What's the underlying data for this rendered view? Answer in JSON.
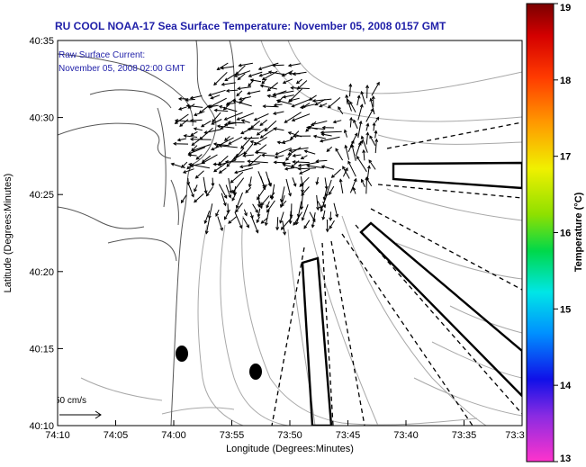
{
  "title": "RU COOL  NOAA-17  Sea Surface Temperature:  November 05, 2008 0157 GMT",
  "subtitle_line1": "Raw Surface Current:",
  "subtitle_line2": "November 05, 2008 02:00 GMT",
  "axes": {
    "ylabel": "Latitude (Degrees:Minutes)",
    "xlabel": "Longitude (Degrees:Minutes)",
    "yticks": [
      "40:35",
      "40:30",
      "40:25",
      "40:20",
      "40:15",
      "40:10"
    ],
    "xticks": [
      "74:10",
      "74:05",
      "74:00",
      "73:55",
      "73:50",
      "73:45",
      "73:40",
      "73:35",
      "73:3"
    ]
  },
  "scale_label": "50 cm/s",
  "colorbar": {
    "label": "Temperature (°C)",
    "ticks": [
      "19",
      "18",
      "17",
      "16",
      "15",
      "14",
      "13"
    ],
    "min": 13,
    "max": 19
  },
  "colors": {
    "title": "#1f1fa8",
    "frame": "#000000",
    "coast": "#555555",
    "bathy": "#999999"
  }
}
